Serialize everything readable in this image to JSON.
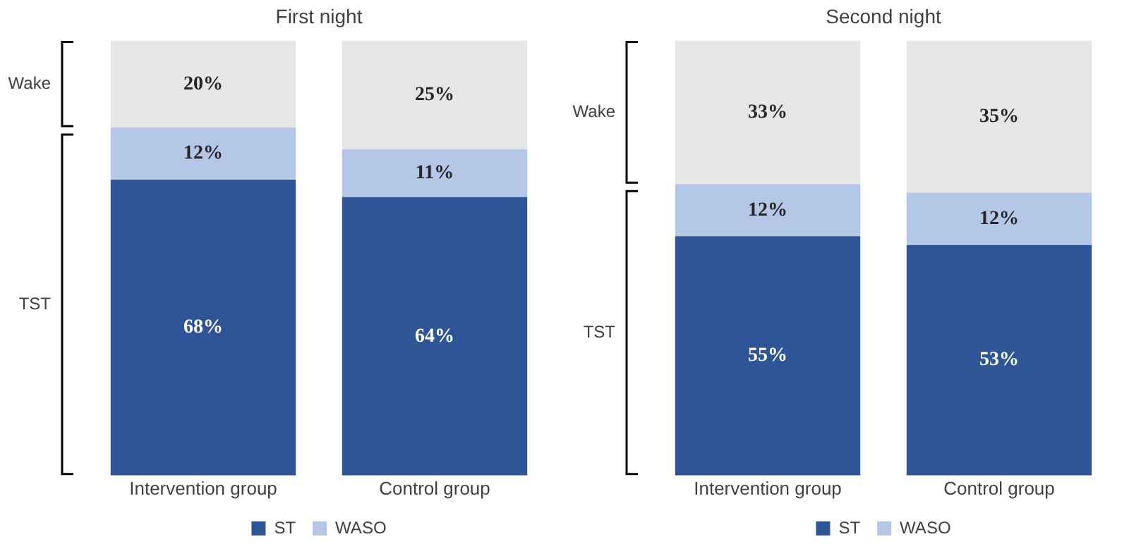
{
  "chart_data": [
    {
      "type": "bar",
      "title": "First night",
      "categories": [
        "Intervention group",
        "Control group"
      ],
      "stacked": true,
      "legend": "bottom",
      "grid": false,
      "annotations": [
        "Wake",
        "TST"
      ],
      "series": [
        {
          "name": "ST",
          "color": "#2f5597",
          "values": [
            68,
            64
          ],
          "value_labels": [
            "68%",
            "64%"
          ]
        },
        {
          "name": "WASO",
          "color": "#b4c7e7",
          "values": [
            12,
            11
          ],
          "value_labels": [
            "12%",
            "11%"
          ]
        },
        {
          "color": "#e7e6e6",
          "values": [
            20,
            25
          ],
          "value_labels": [
            "20%",
            "25%"
          ]
        }
      ]
    },
    {
      "type": "bar",
      "title": "Second night",
      "categories": [
        "Intervention group",
        "Control group"
      ],
      "stacked": true,
      "legend": "bottom",
      "grid": false,
      "annotations": [
        "Wake",
        "TST"
      ],
      "series": [
        {
          "name": "ST",
          "color": "#2f5597",
          "values": [
            55,
            53
          ],
          "value_labels": [
            "55%",
            "53%"
          ]
        },
        {
          "name": "WASO",
          "color": "#b4c7e7",
          "values": [
            12,
            12
          ],
          "value_labels": [
            "12%",
            "12%"
          ]
        },
        {
          "color": "#e7e6e6",
          "values": [
            33,
            35
          ],
          "value_labels": [
            "33%",
            "35%"
          ]
        }
      ]
    }
  ]
}
